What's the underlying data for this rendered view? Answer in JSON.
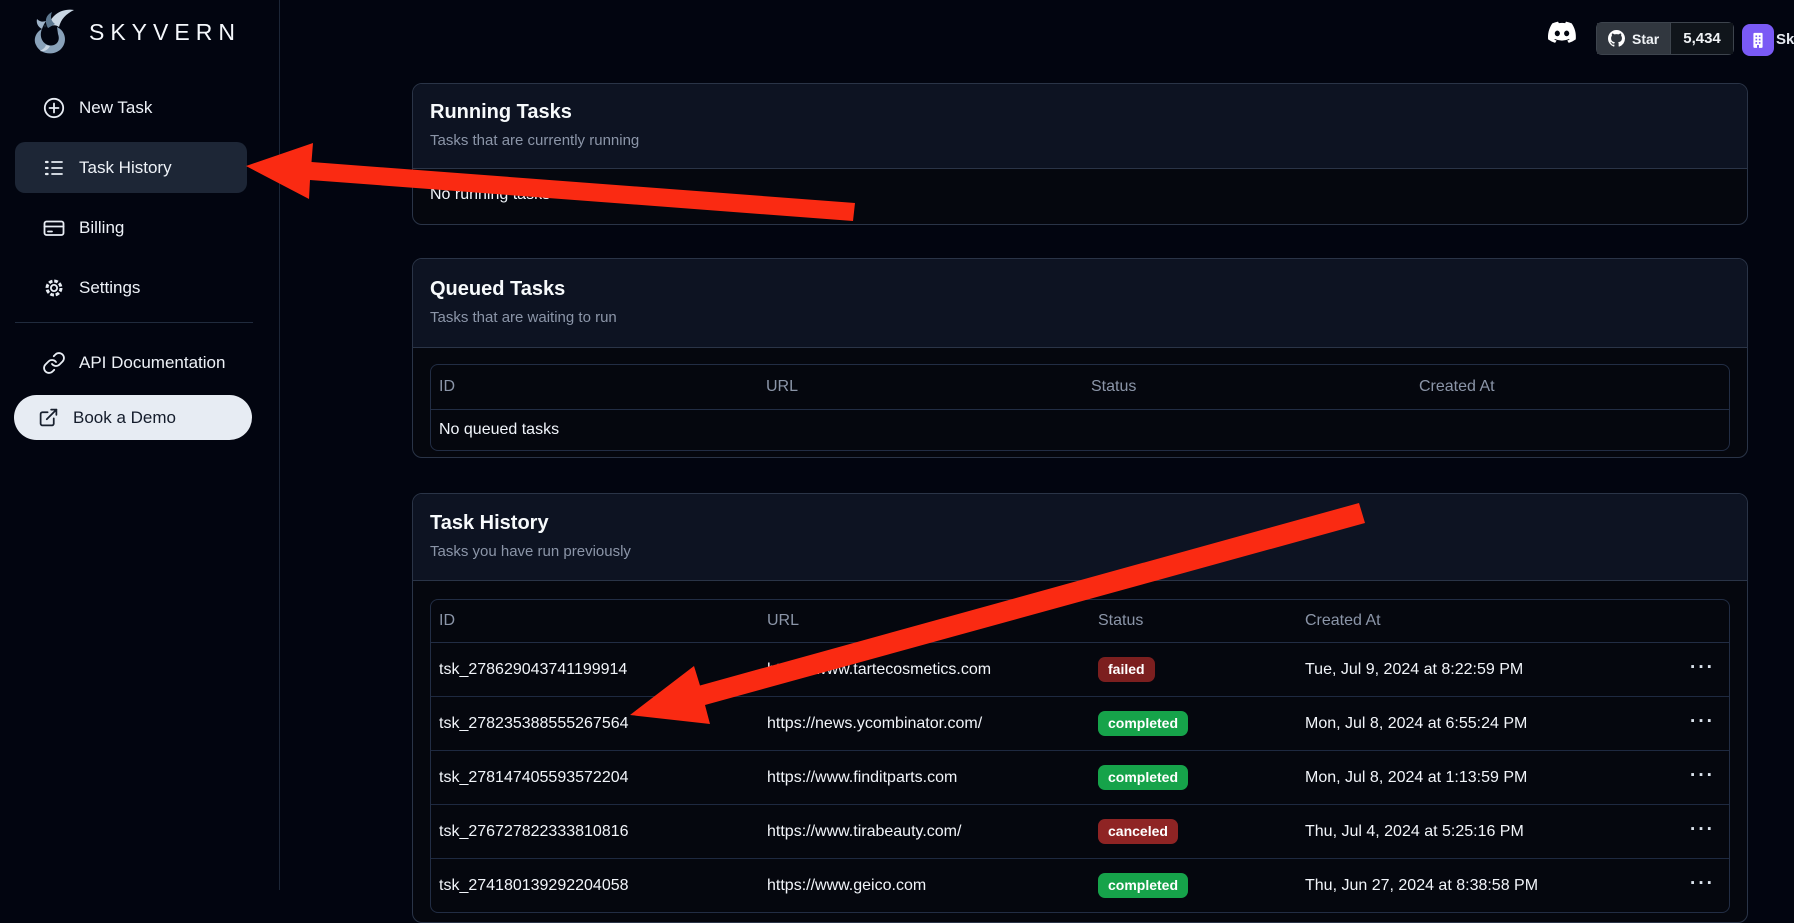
{
  "brand": {
    "name": "SKYVERN"
  },
  "topbar": {
    "github": {
      "label": "Star",
      "count": "5,434"
    },
    "user": {
      "initials": "Sk"
    }
  },
  "sidebar": {
    "primary": [
      {
        "label": "New Task",
        "icon": "plus-circle-icon",
        "active": false
      },
      {
        "label": "Task History",
        "icon": "list-icon",
        "active": true
      },
      {
        "label": "Billing",
        "icon": "credit-card-icon",
        "active": false
      },
      {
        "label": "Settings",
        "icon": "gear-icon",
        "active": false
      }
    ],
    "secondary": [
      {
        "label": "API Documentation",
        "icon": "link-icon"
      },
      {
        "label": "Book a Demo",
        "icon": "external-link-icon"
      }
    ]
  },
  "cards": {
    "running": {
      "title": "Running Tasks",
      "subtitle": "Tasks that are currently running",
      "empty": "No running tasks"
    },
    "queued": {
      "title": "Queued Tasks",
      "subtitle": "Tasks that are waiting to run",
      "headers": [
        "ID",
        "URL",
        "Status",
        "Created At"
      ],
      "empty": "No queued tasks"
    },
    "history": {
      "title": "Task History",
      "subtitle": "Tasks you have run previously",
      "headers": [
        "ID",
        "URL",
        "Status",
        "Created At"
      ],
      "rows": [
        {
          "id": "tsk_278629043741199914",
          "url": "https://www.tartecosmetics.com",
          "status": "failed",
          "created_at": "Tue, Jul 9, 2024 at 8:22:59 PM"
        },
        {
          "id": "tsk_278235388555267564",
          "url": "https://news.ycombinator.com/",
          "status": "completed",
          "created_at": "Mon, Jul 8, 2024 at 6:55:24 PM"
        },
        {
          "id": "tsk_278147405593572204",
          "url": "https://www.finditparts.com",
          "status": "completed",
          "created_at": "Mon, Jul 8, 2024 at 1:13:59 PM"
        },
        {
          "id": "tsk_276727822333810816",
          "url": "https://www.tirabeauty.com/",
          "status": "canceled",
          "created_at": "Thu, Jul 4, 2024 at 5:25:16 PM"
        },
        {
          "id": "tsk_274180139292204058",
          "url": "https://www.geico.com",
          "status": "completed",
          "created_at": "Thu, Jun 27, 2024 at 8:38:58 PM"
        }
      ]
    }
  },
  "colors": {
    "arrow_red": "#fa2a12",
    "avatar_bg": "#7a5af5",
    "status": {
      "failed": "#7c1f1f",
      "completed": "#16a34a",
      "canceled": "#8f2424"
    }
  }
}
